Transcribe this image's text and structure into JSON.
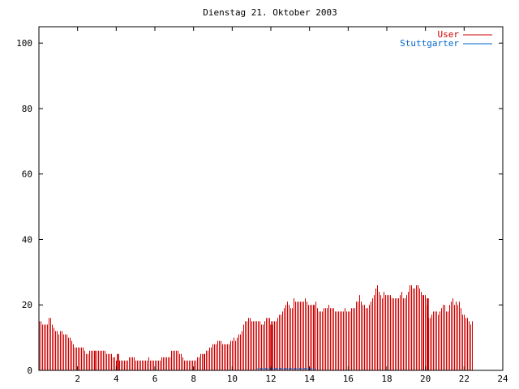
{
  "chart_data": {
    "type": "bar",
    "title": "Dienstag 21. Oktober 2003",
    "xlabel": "",
    "ylabel": "",
    "xlim": [
      0,
      24
    ],
    "ylim": [
      0,
      105
    ],
    "xticks": [
      2,
      4,
      6,
      8,
      10,
      12,
      14,
      16,
      18,
      20,
      22,
      24
    ],
    "yticks": [
      0,
      20,
      40,
      60,
      80,
      100
    ],
    "grid": false,
    "legend_position": "top-right",
    "bin_hours": 0.0833,
    "series": [
      {
        "name": "User",
        "color": "#cc0000",
        "values": [
          15,
          15,
          14,
          14,
          14,
          14,
          16,
          16,
          14,
          13,
          12,
          12,
          11,
          12,
          12,
          11,
          11,
          11,
          10,
          10,
          9,
          8,
          7,
          7,
          7,
          7,
          7,
          7,
          6,
          5,
          5,
          6,
          6,
          6,
          6,
          6,
          6,
          6,
          6,
          6,
          6,
          6,
          5,
          5,
          5,
          5,
          4,
          4,
          3,
          3,
          3,
          3,
          3,
          3,
          3,
          3,
          4,
          4,
          4,
          4,
          3,
          3,
          3,
          3,
          3,
          3,
          3,
          3,
          4,
          3,
          3,
          3,
          3,
          3,
          3,
          3,
          4,
          4,
          4,
          4,
          4,
          4,
          6,
          6,
          6,
          6,
          6,
          5,
          5,
          4,
          3,
          3,
          3,
          3,
          3,
          3,
          3,
          3,
          4,
          4,
          5,
          5,
          5,
          5,
          6,
          6,
          7,
          7,
          8,
          8,
          8,
          9,
          9,
          9,
          8,
          8,
          8,
          8,
          8,
          9,
          9,
          10,
          9,
          10,
          11,
          11,
          12,
          14,
          15,
          15,
          16,
          16,
          15,
          15,
          15,
          15,
          15,
          15,
          14,
          14,
          15,
          16,
          16,
          16,
          15,
          15,
          15,
          15,
          16,
          17,
          17,
          18,
          19,
          20,
          21,
          20,
          19,
          19,
          22,
          21,
          21,
          21,
          21,
          21,
          21,
          22,
          21,
          20,
          20,
          20,
          20,
          20,
          21,
          19,
          18,
          18,
          18,
          19,
          19,
          19,
          20,
          19,
          19,
          19,
          18,
          18,
          18,
          18,
          18,
          18,
          19,
          18,
          18,
          18,
          19,
          19,
          19,
          21,
          21,
          23,
          21,
          20,
          20,
          19,
          19,
          20,
          21,
          22,
          23,
          25,
          26,
          24,
          23,
          22,
          24,
          23,
          23,
          23,
          23,
          22,
          22,
          22,
          22,
          22,
          23,
          24,
          22,
          22,
          23,
          24,
          26,
          26,
          25,
          25,
          26,
          26,
          25,
          24,
          23,
          23,
          23,
          20,
          16,
          16,
          17,
          18,
          18,
          18,
          17,
          18,
          19,
          20,
          20,
          18,
          18,
          20,
          21,
          22,
          20,
          21,
          20,
          21,
          19,
          17,
          17,
          16,
          16,
          15,
          14,
          15
        ],
        "highlights": [
          {
            "x": 4.05,
            "value": 5
          },
          {
            "x": 12.0,
            "value": 14
          },
          {
            "x": 20.1,
            "value": 22
          }
        ]
      },
      {
        "name": "Stuttgarter",
        "color": "#0066cc",
        "values": [],
        "segments": [
          {
            "x_start": 11.3,
            "x_end": 14.3,
            "value": 0.5
          }
        ]
      }
    ]
  }
}
